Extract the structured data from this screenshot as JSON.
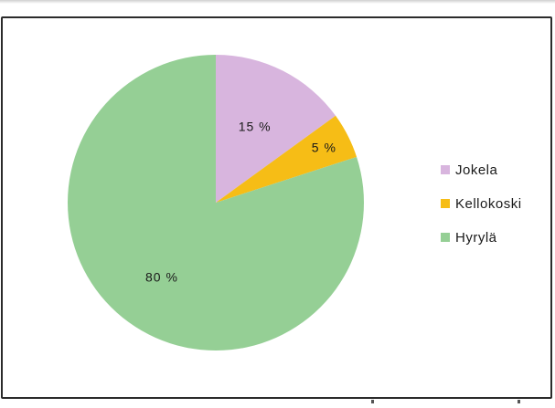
{
  "chart_data": {
    "type": "pie",
    "title": "",
    "slices": [
      {
        "label": "Jokela",
        "value": 15,
        "display": "15 %",
        "color": "#d8b5de"
      },
      {
        "label": "Kellokoski",
        "value": 5,
        "display": "5 %",
        "color": "#f6bd16"
      },
      {
        "label": "Hyrylä",
        "value": 80,
        "display": "80 %",
        "color": "#95cf95"
      }
    ],
    "start_angle_deg": 0,
    "direction": "clockwise",
    "legend_position": "right"
  }
}
